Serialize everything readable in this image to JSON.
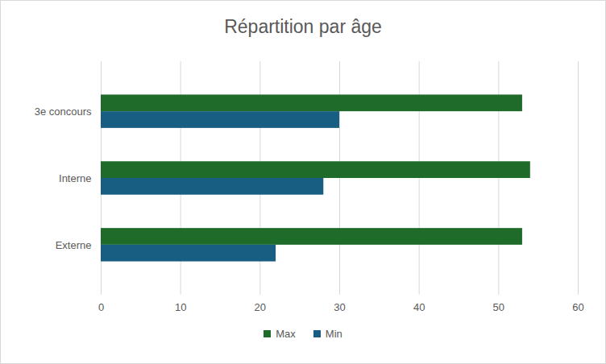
{
  "chart_data": {
    "type": "bar",
    "title": "Répartition par âge",
    "orientation": "horizontal",
    "categories": [
      "3e concours",
      "Interne",
      "Externe"
    ],
    "series": [
      {
        "name": "Max",
        "color": "#1e6b2a",
        "values": [
          53,
          54,
          53
        ]
      },
      {
        "name": "Min",
        "color": "#175e82",
        "values": [
          30,
          28,
          22
        ]
      }
    ],
    "xlim": [
      0,
      60
    ],
    "xticks": [
      0,
      10,
      20,
      30,
      40,
      50,
      60
    ],
    "grid": true,
    "legend": "bottom"
  }
}
